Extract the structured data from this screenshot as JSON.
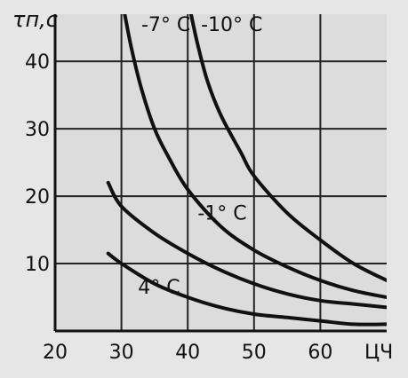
{
  "chart_data": {
    "type": "line",
    "title": "",
    "ylabel": "τп,с",
    "xlabel": "ЦЧ",
    "xlim": [
      20,
      70
    ],
    "ylim": [
      0,
      47
    ],
    "xticks": [
      20,
      30,
      40,
      50,
      60
    ],
    "yticks": [
      10,
      20,
      30,
      40
    ],
    "grid": true,
    "series": [
      {
        "name": "-7° C",
        "x": [
          30.5,
          31.5,
          33,
          35,
          37,
          40,
          45,
          50,
          55,
          60,
          65,
          70
        ],
        "y": [
          47,
          42,
          36,
          30,
          26,
          21,
          15.5,
          12,
          9.5,
          7.5,
          6,
          5
        ]
      },
      {
        "name": "-10° C",
        "x": [
          40.5,
          41.5,
          43,
          45,
          48,
          50,
          55,
          60,
          65,
          70
        ],
        "y": [
          47,
          42.5,
          37,
          32,
          26.5,
          23,
          17.5,
          13.5,
          10,
          7.5
        ]
      },
      {
        "name": "-1° C",
        "x": [
          28,
          30,
          35,
          40,
          45,
          50,
          55,
          60,
          65,
          70
        ],
        "y": [
          22,
          18.5,
          14.5,
          11.5,
          9,
          7,
          5.5,
          4.5,
          4,
          3.5
        ]
      },
      {
        "name": "4° C",
        "x": [
          28,
          30,
          35,
          40,
          45,
          50,
          55,
          60,
          65,
          70
        ],
        "y": [
          11.5,
          10,
          7,
          5,
          3.5,
          2.5,
          2,
          1.5,
          1,
          1
        ]
      }
    ],
    "labels": [
      {
        "text": "-7° C",
        "x": 33,
        "y": 44.5
      },
      {
        "text": "-10° C",
        "x": 42,
        "y": 44.5
      },
      {
        "text": "-1° C",
        "x": 41.5,
        "y": 16.5
      },
      {
        "text": "4° C",
        "x": 32.5,
        "y": 5.5
      }
    ]
  }
}
